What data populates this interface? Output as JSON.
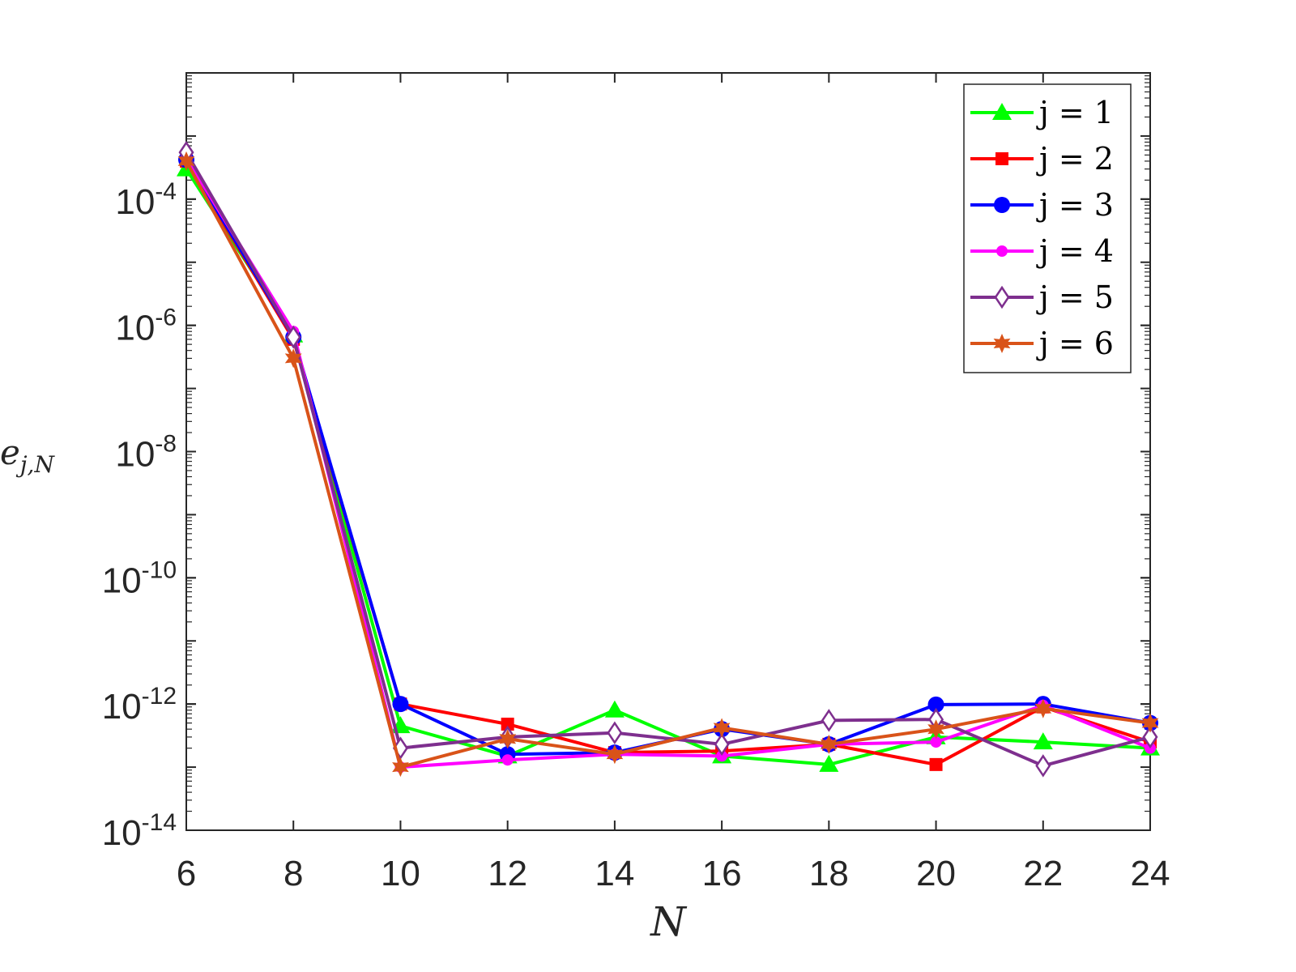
{
  "chart_data": {
    "type": "line",
    "xlabel": "N",
    "ylabel": "e_{j,N}",
    "x": [
      6,
      8,
      10,
      12,
      14,
      16,
      18,
      20,
      22,
      24
    ],
    "xlim": [
      6,
      24
    ],
    "ylim": [
      1e-14,
      0.01
    ],
    "yscale": "log",
    "xticks": [
      "6",
      "8",
      "10",
      "12",
      "14",
      "16",
      "18",
      "20",
      "22",
      "24"
    ],
    "yticks": [
      {
        "base": "10",
        "exp": "-4"
      },
      {
        "base": "10",
        "exp": "-6"
      },
      {
        "base": "10",
        "exp": "-8"
      },
      {
        "base": "10",
        "exp": "-10"
      },
      {
        "base": "10",
        "exp": "-12"
      },
      {
        "base": "10",
        "exp": "-14"
      }
    ],
    "grid": false,
    "legend_position": "top-right",
    "series": [
      {
        "name": "j = 1",
        "color": "#00ff00",
        "marker": "triangle",
        "values": [
          0.0003,
          7e-07,
          4.5e-13,
          1.5e-13,
          8e-13,
          1.5e-13,
          1.1e-13,
          3e-13,
          2.5e-13,
          2e-13
        ]
      },
      {
        "name": "j = 2",
        "color": "#ff0000",
        "marker": "square",
        "values": [
          0.0004,
          6e-07,
          1e-12,
          4.8e-13,
          1.7e-13,
          1.8e-13,
          2.3e-13,
          1.1e-13,
          9e-13,
          2.5e-13
        ]
      },
      {
        "name": "j = 3",
        "color": "#0000ff",
        "marker": "circle",
        "values": [
          0.00042,
          6.5e-07,
          1e-12,
          1.6e-13,
          1.7e-13,
          4e-13,
          2.3e-13,
          9.8e-13,
          1e-12,
          5e-13
        ]
      },
      {
        "name": "j = 4",
        "color": "#ff00ff",
        "marker": "dot",
        "values": [
          0.00045,
          8e-07,
          1e-13,
          1.3e-13,
          1.6e-13,
          1.5e-13,
          2.3e-13,
          2.5e-13,
          9.5e-13,
          2e-13
        ]
      },
      {
        "name": "j = 5",
        "color": "#7e2f8e",
        "marker": "diamond",
        "values": [
          0.00055,
          6.5e-07,
          2e-13,
          3e-13,
          3.5e-13,
          2.3e-13,
          5.5e-13,
          5.7e-13,
          1.05e-13,
          3e-13
        ]
      },
      {
        "name": "j = 6",
        "color": "#d95319",
        "marker": "star",
        "values": [
          0.0004,
          3e-07,
          1e-13,
          2.8e-13,
          1.6e-13,
          4.2e-13,
          2.3e-13,
          4e-13,
          8.5e-13,
          5e-13
        ]
      }
    ]
  }
}
